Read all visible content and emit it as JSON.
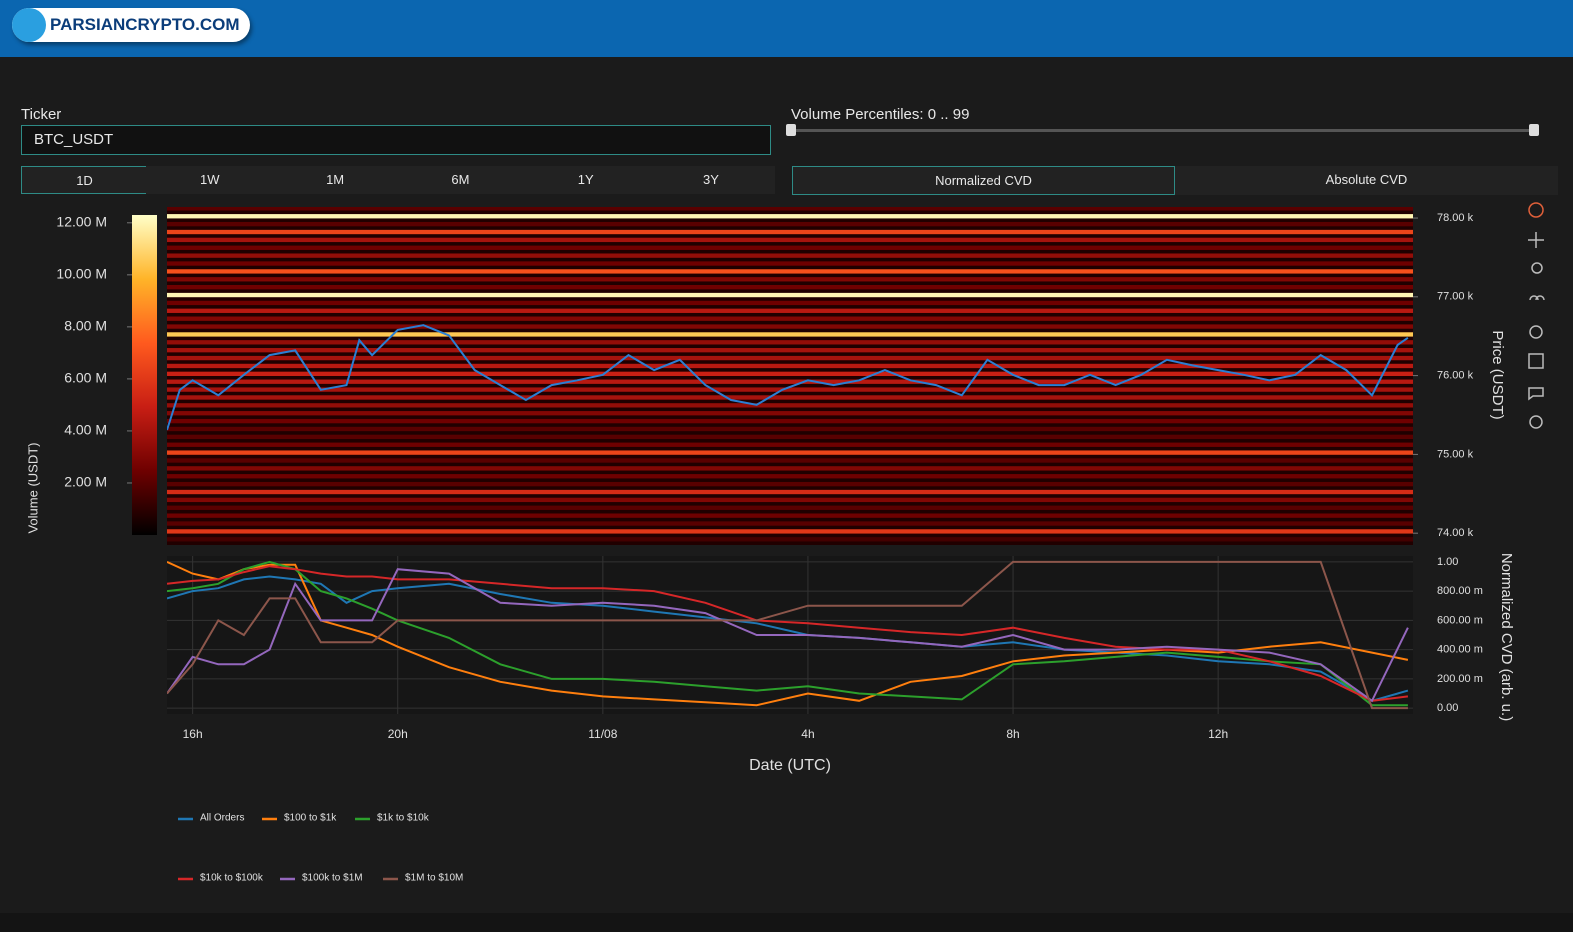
{
  "header": {
    "logo": "PARSIANCRYPTO.COM"
  },
  "controls": {
    "ticker_label": "Ticker",
    "ticker_value": "BTC_USDT",
    "ranges": [
      "1D",
      "1W",
      "1M",
      "6M",
      "1Y",
      "3Y"
    ],
    "percentile_label": "Volume Percentiles: 0 .. 99",
    "modes": [
      "Normalized CVD",
      "Absolute CVD"
    ]
  },
  "chart_data": [
    {
      "type": "heatmap",
      "ylabel": "Price (USDT)",
      "colorbar_label": "Volume (USDT)",
      "xlim": [
        15.5,
        39.8
      ],
      "ylim": [
        73850,
        78140
      ],
      "yticks": [
        {
          "value": 74000,
          "label": "74.00 k"
        },
        {
          "value": 75000,
          "label": "75.00 k"
        },
        {
          "value": 76000,
          "label": "76.00 k"
        },
        {
          "value": 77000,
          "label": "77.00 k"
        },
        {
          "value": 78000,
          "label": "78.00 k"
        }
      ],
      "zlim": [
        0,
        12300000
      ],
      "zticks": [
        {
          "value": 2000000,
          "label": "2.00 M"
        },
        {
          "value": 4000000,
          "label": "4.00 M"
        },
        {
          "value": 6000000,
          "label": "6.00 M"
        },
        {
          "value": 8000000,
          "label": "8.00 M"
        },
        {
          "value": 10000000,
          "label": "10.00 M"
        },
        {
          "value": 12000000,
          "label": "12.00 M"
        }
      ],
      "colorscale": [
        "#000000",
        "#6e0000",
        "#c81e14",
        "#ff5a1e",
        "#ffb428",
        "#ffffc8"
      ],
      "heatmap": {
        "y": [
          73900,
          74000,
          74100,
          74200,
          74300,
          74400,
          74500,
          74600,
          74700,
          74800,
          74900,
          75000,
          75100,
          75200,
          75300,
          75400,
          75500,
          75600,
          75700,
          75800,
          75900,
          76000,
          76100,
          76200,
          76300,
          76400,
          76500,
          76600,
          76700,
          76800,
          76900,
          77000,
          77100,
          77200,
          77300,
          77400,
          77500,
          77600,
          77700,
          77800,
          77900,
          78000,
          78100
        ],
        "z": [
          1500000,
          6000000,
          2000000,
          2500000,
          2000000,
          3000000,
          5500000,
          2000000,
          2500000,
          3000000,
          2000000,
          6500000,
          2500000,
          2000000,
          2000000,
          2500000,
          3000000,
          3500000,
          4000000,
          4000000,
          4500000,
          5000000,
          4500000,
          4000000,
          4000000,
          3500000,
          10500000,
          3000000,
          3000000,
          4500000,
          2500000,
          12000000,
          2500000,
          3000000,
          7000000,
          2500000,
          3500000,
          2500000,
          4000000,
          6500000,
          2000000,
          12000000,
          2000000
        ]
      },
      "price": {
        "color": "#2a7fd4",
        "x": [
          15.5,
          15.75,
          16,
          16.5,
          17,
          17.5,
          18,
          18.5,
          19,
          19.25,
          19.5,
          20,
          20.5,
          21,
          21.5,
          22,
          22.5,
          23,
          23.5,
          24,
          24.5,
          25,
          25.5,
          26,
          26.5,
          27,
          27.5,
          28,
          28.5,
          29,
          29.5,
          30,
          30.5,
          31,
          31.5,
          32,
          32.5,
          33,
          33.5,
          34,
          34.5,
          35,
          35.5,
          36,
          36.5,
          37,
          37.5,
          38,
          38.5,
          39,
          39.5,
          39.7
        ],
        "values": [
          75310,
          75820,
          75940,
          75750,
          76010,
          76260,
          76320,
          75820,
          75880,
          76450,
          76260,
          76580,
          76640,
          76510,
          76070,
          75880,
          75690,
          75880,
          75940,
          76010,
          76260,
          76070,
          76200,
          75880,
          75690,
          75630,
          75820,
          75940,
          75880,
          75940,
          76070,
          75940,
          75880,
          75750,
          76200,
          76010,
          75880,
          75880,
          76010,
          75880,
          76010,
          76200,
          76130,
          76070,
          76010,
          75940,
          76010,
          76260,
          76070,
          75750,
          76390,
          76480
        ]
      }
    },
    {
      "type": "line",
      "xlabel": "Date (UTC)",
      "ylabel": "Normalized CVD (arb. u.)",
      "xlim": [
        15.5,
        39.8
      ],
      "ylim": [
        -0.04,
        1.04
      ],
      "grid": true,
      "xticks": [
        {
          "value": 16,
          "label": "16h"
        },
        {
          "value": 20,
          "label": "20h"
        },
        {
          "value": 24,
          "label": "11/08"
        },
        {
          "value": 28,
          "label": "4h"
        },
        {
          "value": 32,
          "label": "8h"
        },
        {
          "value": 36,
          "label": "12h"
        }
      ],
      "yticks": [
        {
          "value": 0,
          "label": "0.00"
        },
        {
          "value": 0.2,
          "label": "200.00 m"
        },
        {
          "value": 0.4,
          "label": "400.00 m"
        },
        {
          "value": 0.6,
          "label": "600.00 m"
        },
        {
          "value": 0.8,
          "label": "800.00 m"
        },
        {
          "value": 1,
          "label": "1.00"
        }
      ],
      "x": [
        15.5,
        16,
        16.5,
        17,
        17.5,
        18,
        18.5,
        19,
        19.5,
        20,
        21,
        22,
        23,
        24,
        25,
        26,
        27,
        28,
        29,
        30,
        31,
        32,
        33,
        34,
        35,
        36,
        37,
        38,
        39,
        39.7
      ],
      "series": [
        {
          "name": "All Orders",
          "color": "#1f77b4",
          "values": [
            0.75,
            0.8,
            0.82,
            0.88,
            0.9,
            0.88,
            0.85,
            0.72,
            0.8,
            0.82,
            0.85,
            0.78,
            0.72,
            0.7,
            0.66,
            0.62,
            0.58,
            0.5,
            0.48,
            0.45,
            0.42,
            0.45,
            0.4,
            0.38,
            0.36,
            0.32,
            0.3,
            0.25,
            0.05,
            0.12
          ]
        },
        {
          "name": "$100 to $1k",
          "color": "#ff7f0e",
          "values": [
            1.0,
            0.92,
            0.88,
            0.95,
            0.98,
            0.98,
            0.6,
            0.55,
            0.5,
            0.42,
            0.28,
            0.18,
            0.12,
            0.08,
            0.06,
            0.04,
            0.02,
            0.1,
            0.05,
            0.18,
            0.22,
            0.32,
            0.36,
            0.38,
            0.4,
            0.38,
            0.42,
            0.45,
            0.38,
            0.33
          ]
        },
        {
          "name": "$1k to $10k",
          "color": "#2ca02c",
          "values": [
            0.8,
            0.82,
            0.85,
            0.95,
            1.0,
            0.95,
            0.8,
            0.75,
            0.68,
            0.6,
            0.48,
            0.3,
            0.2,
            0.2,
            0.18,
            0.15,
            0.12,
            0.15,
            0.1,
            0.08,
            0.06,
            0.3,
            0.32,
            0.35,
            0.38,
            0.35,
            0.32,
            0.3,
            0.02,
            0.02
          ]
        },
        {
          "name": "$10k to $100k",
          "color": "#d62728",
          "values": [
            0.85,
            0.87,
            0.88,
            0.93,
            0.97,
            0.95,
            0.92,
            0.9,
            0.9,
            0.88,
            0.88,
            0.85,
            0.82,
            0.82,
            0.8,
            0.72,
            0.6,
            0.58,
            0.55,
            0.52,
            0.5,
            0.55,
            0.48,
            0.42,
            0.4,
            0.4,
            0.32,
            0.22,
            0.05,
            0.08
          ]
        },
        {
          "name": "$100k to $1M",
          "color": "#9467bd",
          "values": [
            0.1,
            0.35,
            0.3,
            0.3,
            0.4,
            0.85,
            0.6,
            0.6,
            0.6,
            0.95,
            0.92,
            0.72,
            0.7,
            0.72,
            0.7,
            0.65,
            0.5,
            0.5,
            0.48,
            0.45,
            0.42,
            0.5,
            0.4,
            0.4,
            0.42,
            0.4,
            0.38,
            0.3,
            0.05,
            0.55
          ]
        },
        {
          "name": "$1M to $10M",
          "color": "#8c564b",
          "values": [
            0.1,
            0.3,
            0.6,
            0.5,
            0.75,
            0.75,
            0.45,
            0.45,
            0.45,
            0.6,
            0.6,
            0.6,
            0.6,
            0.6,
            0.6,
            0.6,
            0.6,
            0.7,
            0.7,
            0.7,
            0.7,
            1.0,
            1.0,
            1.0,
            1.0,
            1.0,
            1.0,
            1.0,
            0,
            0
          ]
        }
      ]
    }
  ]
}
